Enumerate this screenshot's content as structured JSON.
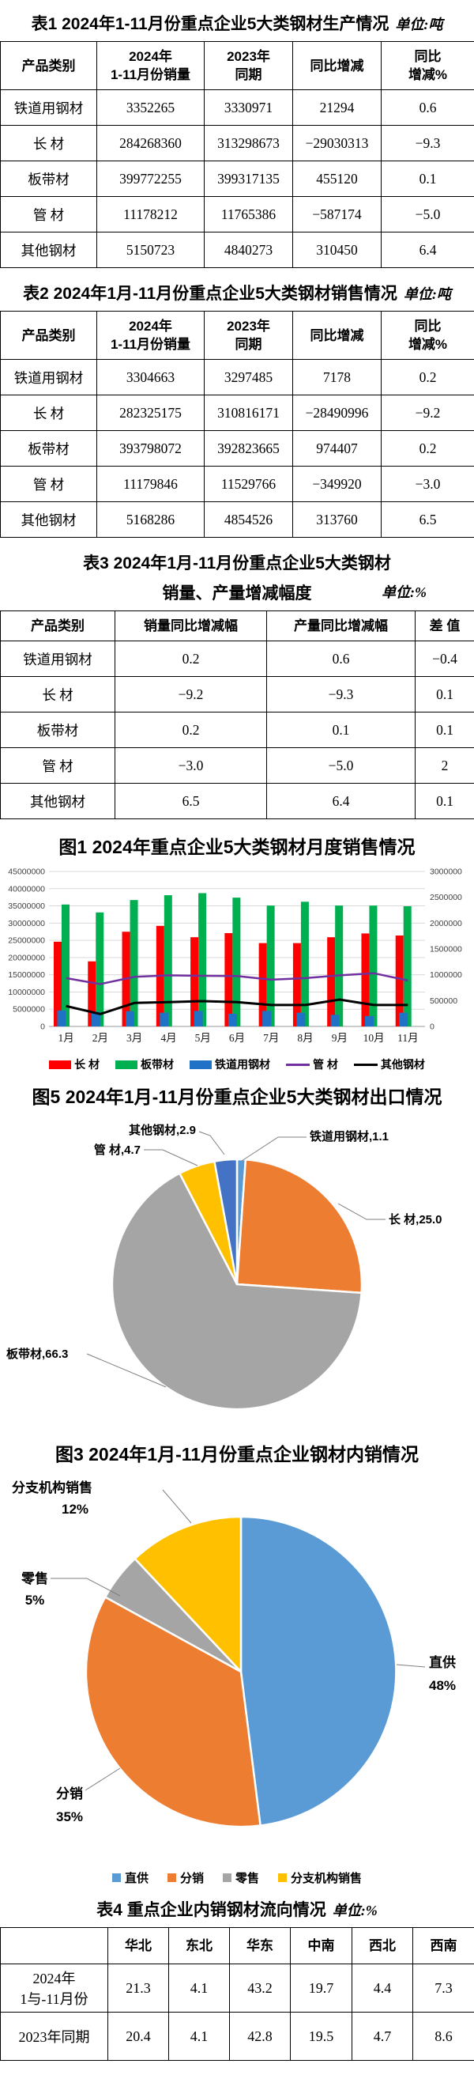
{
  "table1": {
    "title": "表1 2024年1-11月份重点企业5大类钢材生产情况",
    "unit": "单位:吨",
    "headers": [
      "产品类别",
      "2024年\n1-11月份销量",
      "2023年\n同期",
      "同比增减",
      "同比\n增减%"
    ],
    "rows": [
      [
        "铁道用钢材",
        "3352265",
        "3330971",
        "21294",
        "0.6"
      ],
      [
        "长  材",
        "284268360",
        "313298673",
        "−29030313",
        "−9.3"
      ],
      [
        "板带材",
        "399772255",
        "399317135",
        "455120",
        "0.1"
      ],
      [
        "管  材",
        "11178212",
        "11765386",
        "−587174",
        "−5.0"
      ],
      [
        "其他钢材",
        "5150723",
        "4840273",
        "310450",
        "6.4"
      ]
    ]
  },
  "table2": {
    "title": "表2 2024年1月-11月份重点企业5大类钢材销售情况",
    "unit": "单位:吨",
    "headers": [
      "产品类别",
      "2024年\n1-11月份销量",
      "2023年\n同期",
      "同比增减",
      "同比\n增减%"
    ],
    "rows": [
      [
        "铁道用钢材",
        "3304663",
        "3297485",
        "7178",
        "0.2"
      ],
      [
        "长  材",
        "282325175",
        "310816171",
        "−28490996",
        "−9.2"
      ],
      [
        "板带材",
        "393798072",
        "392823665",
        "974407",
        "0.2"
      ],
      [
        "管  材",
        "11179846",
        "11529766",
        "−349920",
        "−3.0"
      ],
      [
        "其他钢材",
        "5168286",
        "4854526",
        "313760",
        "6.5"
      ]
    ]
  },
  "table3": {
    "title_line1": "表3  2024年1月-11月份重点企业5大类钢材",
    "title_line2": "销量、产量增减幅度",
    "unit": "单位:%",
    "headers": [
      "产品类别",
      "销量同比增减幅",
      "产量同比增减幅",
      "差 值"
    ],
    "rows": [
      [
        "铁道用钢材",
        "0.2",
        "0.6",
        "−0.4"
      ],
      [
        "长  材",
        "−9.2",
        "−9.3",
        "0.1"
      ],
      [
        "板带材",
        "0.2",
        "0.1",
        "0.1"
      ],
      [
        "管  材",
        "−3.0",
        "−5.0",
        "2"
      ],
      [
        "其他钢材",
        "6.5",
        "6.4",
        "0.1"
      ]
    ]
  },
  "chart_data": [
    {
      "type": "bar",
      "title": "图1 2024年重点企业5大类钢材月度销售情况",
      "categories": [
        "1月",
        "2月",
        "3月",
        "4月",
        "5月",
        "6月",
        "7月",
        "8月",
        "9月",
        "10月",
        "11月"
      ],
      "series": [
        {
          "name": "长 材",
          "type": "bar",
          "axis": "left",
          "color": "#FF0000",
          "values": [
            24600000,
            18900000,
            27500000,
            29200000,
            25900000,
            27100000,
            24200000,
            24200000,
            25900000,
            27000000,
            26400000
          ]
        },
        {
          "name": "板带材",
          "type": "bar",
          "axis": "left",
          "color": "#00B050",
          "values": [
            35400000,
            33100000,
            36700000,
            38100000,
            38700000,
            37400000,
            35100000,
            36200000,
            35100000,
            35100000,
            34900000
          ]
        },
        {
          "name": "铁道用钢材",
          "type": "bar",
          "axis": "right",
          "color": "#1F72C6",
          "values": [
            310000,
            285000,
            295000,
            265000,
            300000,
            245000,
            300000,
            265000,
            225000,
            200000,
            265000
          ]
        },
        {
          "name": "管 材",
          "type": "line",
          "axis": "right",
          "color": "#7030A0",
          "values": [
            935000,
            820000,
            960000,
            990000,
            980000,
            975000,
            905000,
            935000,
            990000,
            1030000,
            890000
          ]
        },
        {
          "name": "其他钢材",
          "type": "line",
          "axis": "right",
          "color": "#000000",
          "values": [
            395000,
            240000,
            455000,
            470000,
            490000,
            470000,
            415000,
            415000,
            520000,
            415000,
            415000
          ]
        }
      ],
      "left_axis": {
        "min": 0,
        "max": 45000000,
        "step": 5000000
      },
      "right_axis": {
        "min": 0,
        "max": 3000000,
        "step": 500000
      },
      "grid": true,
      "legend_position": "bottom"
    },
    {
      "type": "pie",
      "title": "图5 2024年1月-11月份重点企业5大类钢材出口情况",
      "value_unit": "%",
      "slices": [
        {
          "name": "铁道用钢材",
          "value": 1.1,
          "color": "#5B9BD5",
          "label": "铁道用钢材,1.1"
        },
        {
          "name": "长 材",
          "value": 25.0,
          "color": "#ED7D31",
          "label": "长  材,25.0"
        },
        {
          "name": "板带材",
          "value": 66.3,
          "color": "#A5A5A5",
          "label": "板带材,66.3"
        },
        {
          "name": "管 材",
          "value": 4.7,
          "color": "#FFC000",
          "label": "管  材,4.7"
        },
        {
          "name": "其他钢材",
          "value": 2.9,
          "color": "#4472C4",
          "label": "其他钢材,2.9"
        }
      ]
    },
    {
      "type": "pie",
      "title": "图3 2024年1月-11月份重点企业钢材内销情况",
      "value_unit": "%",
      "slices": [
        {
          "name": "直供",
          "value": 48,
          "color": "#5B9BD5",
          "label_lines": [
            "直供",
            "48%"
          ]
        },
        {
          "name": "分销",
          "value": 35,
          "color": "#ED7D31",
          "label_lines": [
            "分销",
            "35%"
          ]
        },
        {
          "name": "零售",
          "value": 5,
          "color": "#A5A5A5",
          "label_lines": [
            "零售",
            "5%"
          ]
        },
        {
          "name": "分支机构销售",
          "value": 12,
          "color": "#FFC000",
          "label_lines": [
            "分支机构销售",
            "12%"
          ]
        }
      ],
      "legend": [
        "直供",
        "分销",
        "零售",
        "分支机构销售"
      ]
    }
  ],
  "table4": {
    "title": "表4 重点企业内销钢材流向情况",
    "unit": "单位:%",
    "headers": [
      "",
      "华北",
      "东北",
      "华东",
      "中南",
      "西北",
      "西南"
    ],
    "rows": [
      [
        "2024年\n1与-11月份",
        "21.3",
        "4.1",
        "43.2",
        "19.7",
        "4.4",
        "7.3"
      ],
      [
        "2023年同期",
        "20.4",
        "4.1",
        "42.8",
        "19.5",
        "4.7",
        "8.6"
      ]
    ]
  }
}
